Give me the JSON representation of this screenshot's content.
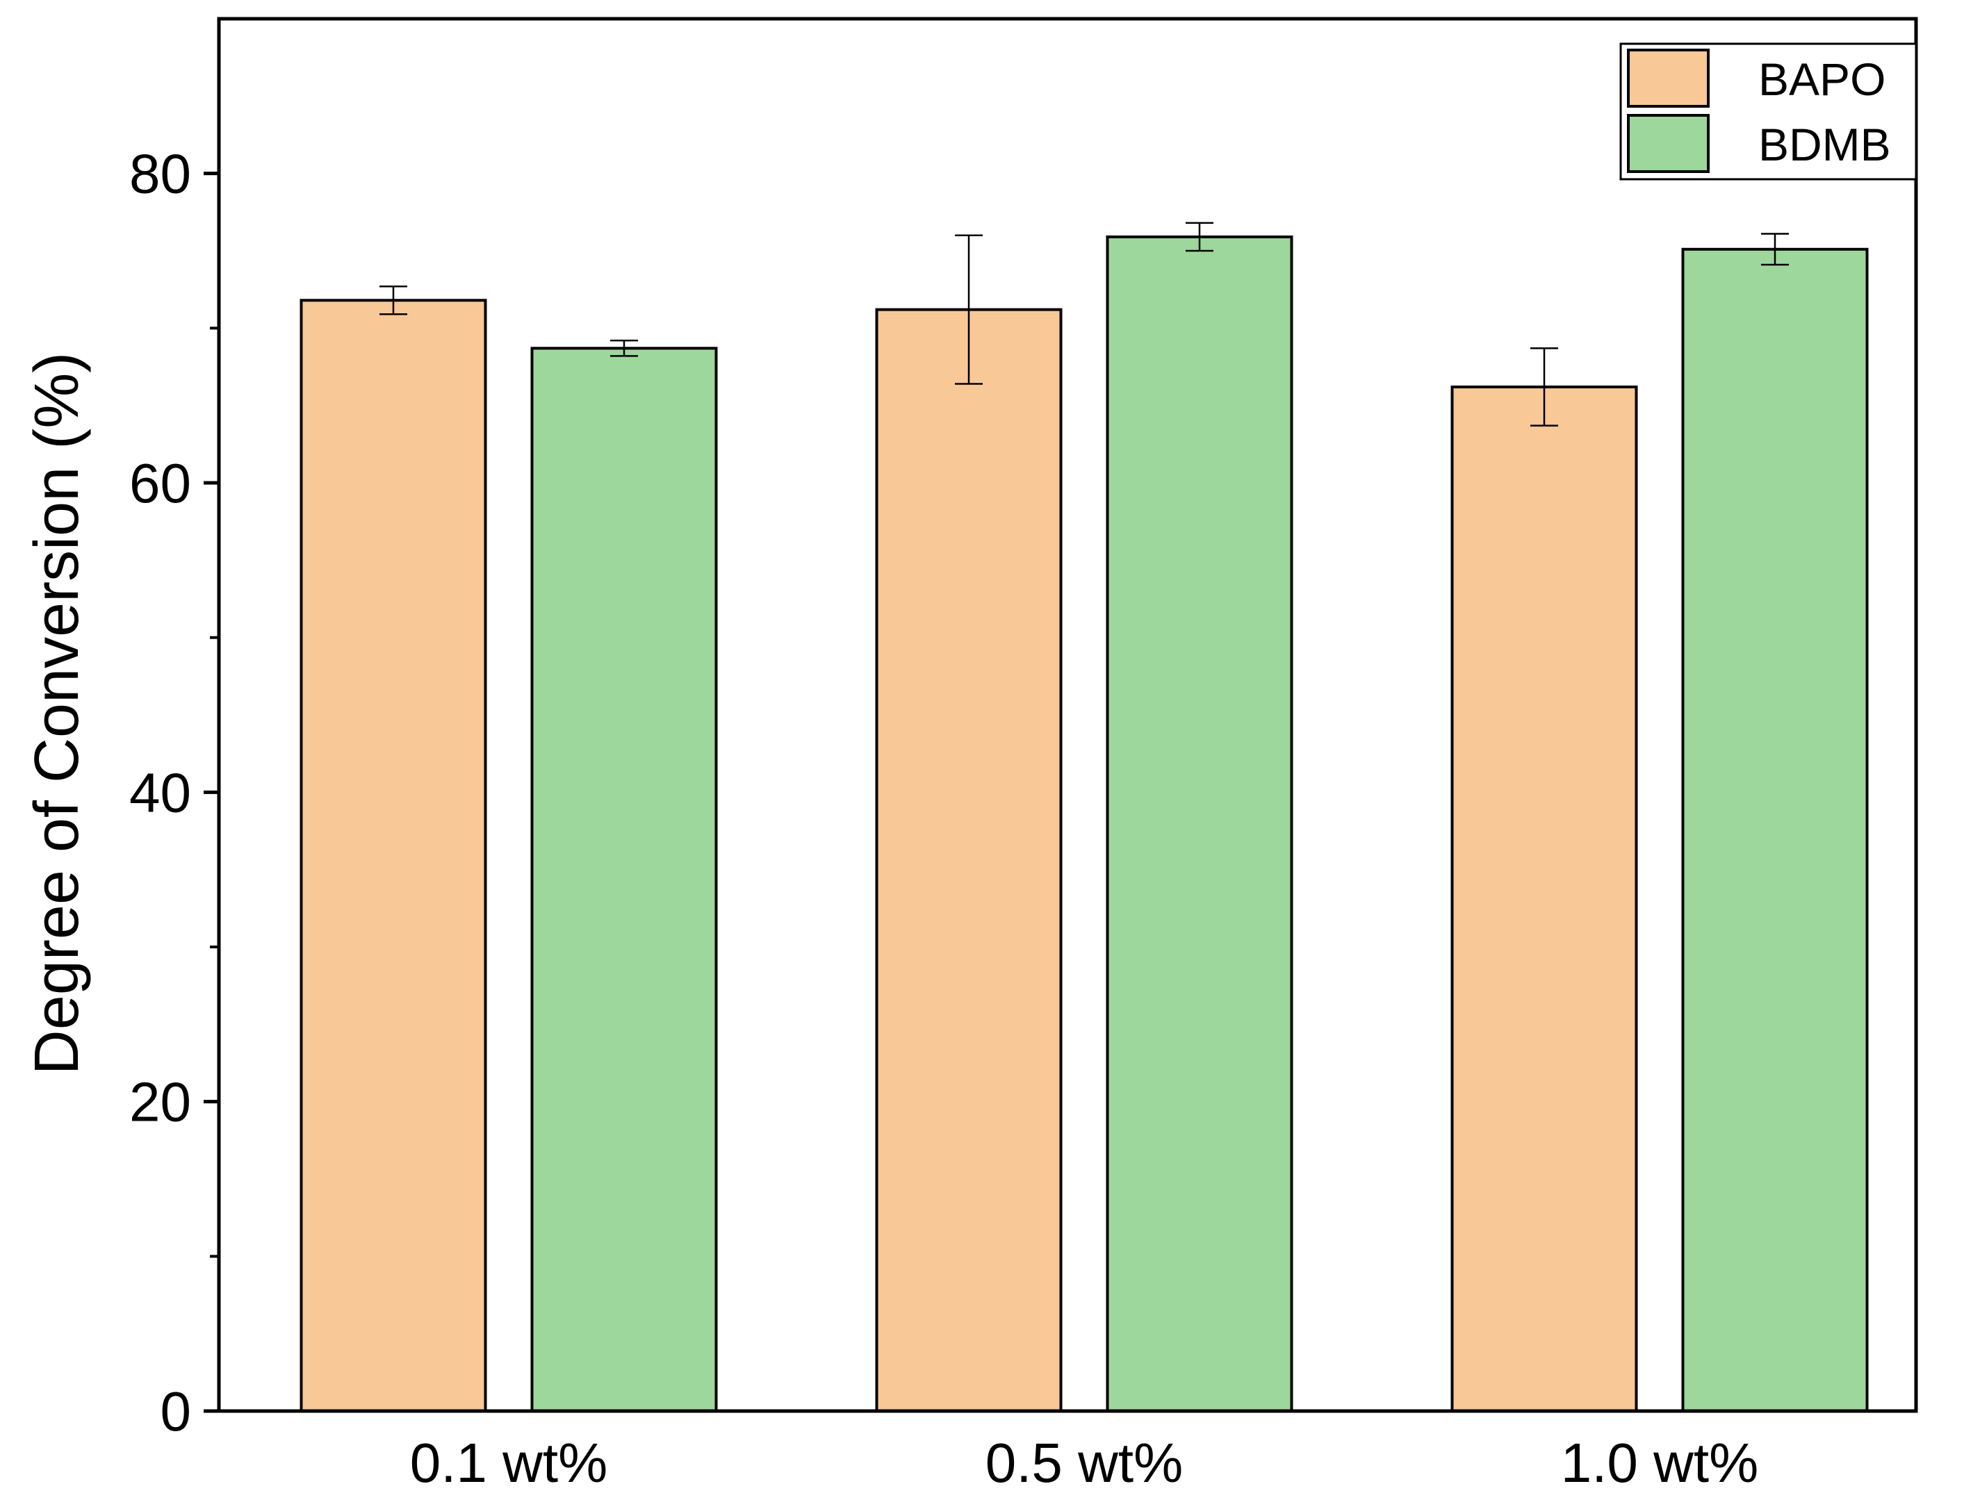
{
  "chart_data": {
    "type": "bar",
    "title": "",
    "xlabel": "",
    "ylabel": "Degree of Conversion (%)",
    "ylim": [
      0,
      90
    ],
    "yticks": [
      0,
      20,
      40,
      60,
      80
    ],
    "yticks_minor": [
      10,
      30,
      50,
      70
    ],
    "grid": false,
    "legend_position": "top-right",
    "categories": [
      "0.1 wt%",
      "0.5 wt%",
      "1.0 wt%"
    ],
    "series": [
      {
        "name": "BAPO",
        "color": "#F9C897",
        "values": [
          71.8,
          71.2,
          66.2
        ],
        "errors": [
          0.9,
          4.8,
          2.5
        ]
      },
      {
        "name": "BDMB",
        "color": "#9ED79C",
        "values": [
          68.7,
          75.9,
          75.1
        ],
        "errors": [
          0.5,
          0.9,
          1.0
        ]
      }
    ]
  }
}
